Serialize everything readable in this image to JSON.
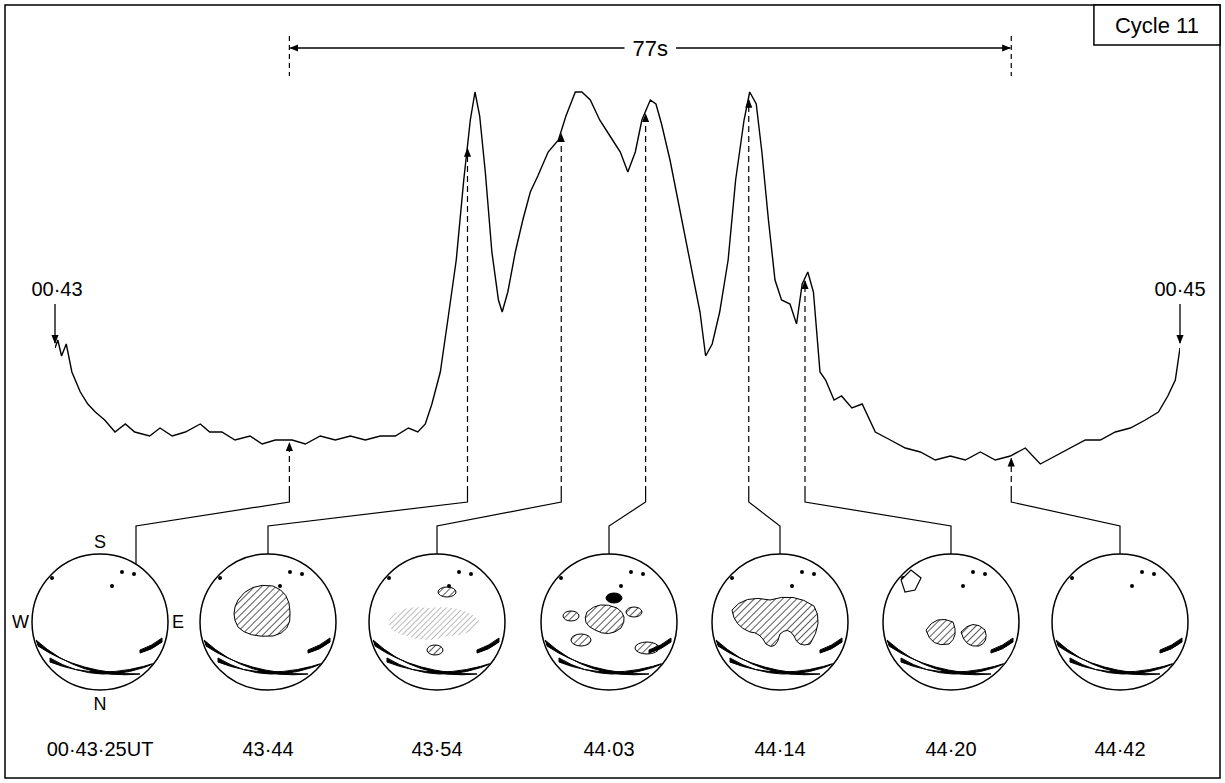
{
  "chart_data": {
    "type": "line",
    "title": "Cycle 11",
    "color": "#000000",
    "x": [
      0,
      0.3,
      0.7,
      1.2,
      1.8,
      2.7,
      3.5,
      4.3,
      5.3,
      6.4,
      7.5,
      8.5,
      10.1,
      11.2,
      12.5,
      13.9,
      15.5,
      16.5,
      17.8,
      19.2,
      20.8,
      22.1,
      23.5,
      25.3,
      26.7,
      28.3,
      29.9,
      31.5,
      33.1,
      34.7,
      36.3,
      37.7,
      38.7,
      39.5,
      40.2,
      41.1,
      41.9,
      42.8,
      43.6,
      44.3,
      44.8,
      45.3,
      45.9,
      46.6,
      47.3,
      47.7,
      48.3,
      49.1,
      49.9,
      50.7,
      51.5,
      52.6,
      53.7,
      54.5,
      55.5,
      56.2,
      57.1,
      58.1,
      59.2,
      60.3,
      61.1,
      61.9,
      62.6,
      63.5,
      64.1,
      64.7,
      65.6,
      66.7,
      67.7,
      68.8,
      69.4,
      70.1,
      70.9,
      71.8,
      72.6,
      73.5,
      74.1,
      74.8,
      75.4,
      76.1,
      76.8,
      77.5,
      78.4,
      79.1,
      79.7,
      80.3,
      80.9,
      81.6,
      82.2,
      83.1,
      83.9,
      85,
      86.1,
      87.5,
      89.1,
      90.7,
      92.3,
      93.9,
      95.5,
      97.1,
      98.7,
      100.3,
      101.9,
      103.5,
      105.1,
      106.7,
      108.3,
      109.9,
      111.5,
      113.1,
      114.7,
      116.3,
      117.7,
      118.7,
      119.5,
      120
    ],
    "values": [
      33,
      35,
      31,
      34,
      27,
      22,
      19,
      17,
      15,
      12,
      14,
      12,
      11,
      13,
      11,
      12,
      14,
      12,
      12,
      10,
      11,
      9,
      10,
      10,
      9,
      11,
      10,
      11,
      10,
      11,
      11,
      13,
      12,
      14,
      19,
      27,
      40,
      55,
      75,
      90,
      97,
      91,
      77,
      57,
      45,
      42,
      47,
      57,
      65,
      72,
      76,
      82,
      85,
      91,
      97,
      97,
      95,
      90,
      86,
      82,
      77,
      82,
      90,
      95,
      94,
      89,
      80,
      67,
      55,
      42,
      31,
      34,
      42,
      55,
      75,
      90,
      97,
      94,
      82,
      65,
      50,
      45,
      44,
      39,
      49,
      52,
      47,
      27,
      25,
      20,
      21,
      18,
      19,
      12,
      10,
      8,
      7,
      5,
      6,
      5,
      7,
      5,
      6,
      8,
      4,
      6,
      8,
      10,
      10,
      12,
      13,
      15,
      17,
      21,
      25,
      33
    ],
    "xlim": [
      0,
      120
    ],
    "ylim": [
      0,
      100
    ],
    "grid": false,
    "tick_labels": false,
    "annotations": [
      {
        "text": "00·43",
        "x": 0
      },
      {
        "text": "00·45",
        "x": 120
      }
    ],
    "span": {
      "label": "77s",
      "from": 25,
      "to": 102
    }
  },
  "sky_images": {
    "directions": {
      "top": "S",
      "left": "W",
      "right": "E",
      "bottom": "N"
    },
    "frames": [
      {
        "label": "00·43·25UT",
        "x": 25
      },
      {
        "label": "43·44",
        "x": 44
      },
      {
        "label": "43·54",
        "x": 54
      },
      {
        "label": "44·03",
        "x": 63
      },
      {
        "label": "44·14",
        "x": 74
      },
      {
        "label": "44·20",
        "x": 80
      },
      {
        "label": "44·42",
        "x": 102
      }
    ]
  }
}
